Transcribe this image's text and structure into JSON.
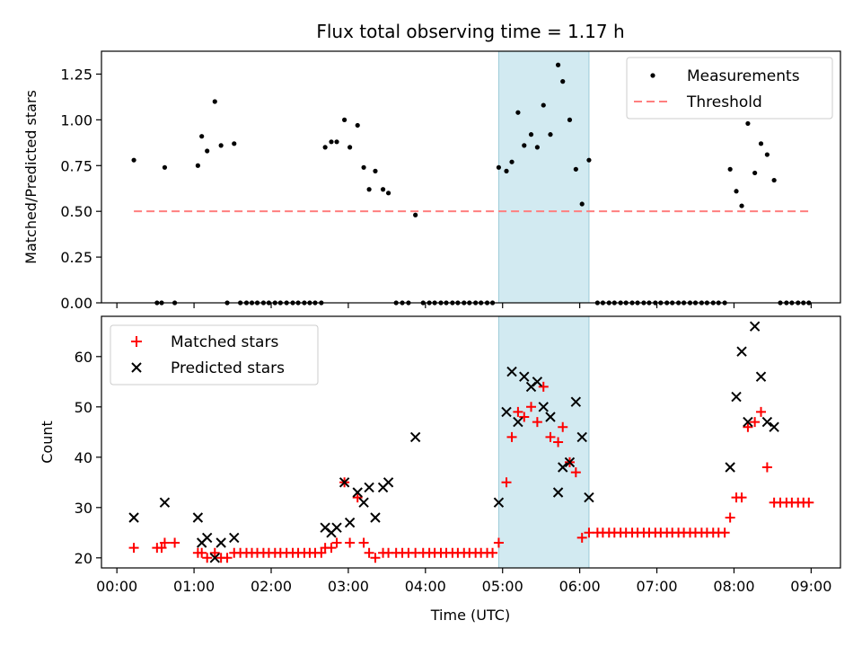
{
  "title": "Flux total observing time = 1.17 h",
  "colors": {
    "measurement": "#000000",
    "threshold": "#ff7f7f",
    "matched": "#ff0000",
    "predicted": "#000000",
    "highlight": "#add8e6"
  },
  "chart_data": [
    {
      "type": "scatter",
      "ylabel": "Matched/Predicted stars",
      "ylim": [
        0,
        1.375
      ],
      "yticks": [
        0,
        0.25,
        0.5,
        0.75,
        1.0,
        1.25
      ],
      "ytick_labels": [
        "0.00",
        "0.25",
        "0.50",
        "0.75",
        "1.00",
        "1.25"
      ],
      "xlim": [
        -0.2,
        9.38
      ],
      "grid": false,
      "legend": {
        "position": "top-right",
        "entries": [
          "Measurements",
          "Threshold"
        ]
      },
      "highlight_span": [
        4.95,
        6.12
      ],
      "threshold": {
        "name": "Threshold",
        "y": 0.5,
        "x_range": [
          0.22,
          8.98
        ]
      },
      "series": [
        {
          "name": "Measurements",
          "points": [
            [
              0.22,
              0.78
            ],
            [
              0.52,
              0
            ],
            [
              0.58,
              0
            ],
            [
              0.62,
              0.74
            ],
            [
              0.75,
              0
            ],
            [
              1.05,
              0.75
            ],
            [
              1.1,
              0.91
            ],
            [
              1.17,
              0.83
            ],
            [
              1.27,
              1.1
            ],
            [
              1.35,
              0.86
            ],
            [
              1.43,
              0
            ],
            [
              1.52,
              0.87
            ],
            [
              1.6,
              0
            ],
            [
              1.68,
              0
            ],
            [
              1.75,
              0
            ],
            [
              1.82,
              0
            ],
            [
              1.9,
              0
            ],
            [
              1.97,
              0
            ],
            [
              2.05,
              0
            ],
            [
              2.12,
              0
            ],
            [
              2.2,
              0
            ],
            [
              2.28,
              0
            ],
            [
              2.35,
              0
            ],
            [
              2.43,
              0
            ],
            [
              2.5,
              0
            ],
            [
              2.57,
              0
            ],
            [
              2.65,
              0
            ],
            [
              2.7,
              0.85
            ],
            [
              2.78,
              0.88
            ],
            [
              2.85,
              0.88
            ],
            [
              2.95,
              1.0
            ],
            [
              3.02,
              0.85
            ],
            [
              3.12,
              0.97
            ],
            [
              3.2,
              0.74
            ],
            [
              3.27,
              0.62
            ],
            [
              3.35,
              0.72
            ],
            [
              3.45,
              0.62
            ],
            [
              3.52,
              0.6
            ],
            [
              3.62,
              0
            ],
            [
              3.7,
              0
            ],
            [
              3.78,
              0
            ],
            [
              3.87,
              0.48
            ],
            [
              3.97,
              0
            ],
            [
              4.05,
              0
            ],
            [
              4.12,
              0
            ],
            [
              4.2,
              0
            ],
            [
              4.27,
              0
            ],
            [
              4.35,
              0
            ],
            [
              4.42,
              0
            ],
            [
              4.5,
              0
            ],
            [
              4.57,
              0
            ],
            [
              4.65,
              0
            ],
            [
              4.72,
              0
            ],
            [
              4.8,
              0
            ],
            [
              4.87,
              0
            ],
            [
              4.95,
              0.74
            ],
            [
              5.05,
              0.72
            ],
            [
              5.12,
              0.77
            ],
            [
              5.2,
              1.04
            ],
            [
              5.28,
              0.86
            ],
            [
              5.37,
              0.92
            ],
            [
              5.45,
              0.85
            ],
            [
              5.53,
              1.08
            ],
            [
              5.62,
              0.92
            ],
            [
              5.72,
              1.3
            ],
            [
              5.78,
              1.21
            ],
            [
              5.87,
              1.0
            ],
            [
              5.95,
              0.73
            ],
            [
              6.03,
              0.54
            ],
            [
              6.12,
              0.78
            ],
            [
              6.23,
              0
            ],
            [
              6.3,
              0
            ],
            [
              6.38,
              0
            ],
            [
              6.45,
              0
            ],
            [
              6.53,
              0
            ],
            [
              6.6,
              0
            ],
            [
              6.68,
              0
            ],
            [
              6.75,
              0
            ],
            [
              6.83,
              0
            ],
            [
              6.9,
              0
            ],
            [
              6.98,
              0
            ],
            [
              7.05,
              0
            ],
            [
              7.13,
              0
            ],
            [
              7.2,
              0
            ],
            [
              7.28,
              0
            ],
            [
              7.35,
              0
            ],
            [
              7.43,
              0
            ],
            [
              7.5,
              0
            ],
            [
              7.58,
              0
            ],
            [
              7.65,
              0
            ],
            [
              7.73,
              0
            ],
            [
              7.8,
              0
            ],
            [
              7.88,
              0
            ],
            [
              7.95,
              0.73
            ],
            [
              8.03,
              0.61
            ],
            [
              8.1,
              0.53
            ],
            [
              8.18,
              0.98
            ],
            [
              8.27,
              0.71
            ],
            [
              8.35,
              0.87
            ],
            [
              8.43,
              0.81
            ],
            [
              8.52,
              0.67
            ],
            [
              8.6,
              0
            ],
            [
              8.68,
              0
            ],
            [
              8.75,
              0
            ],
            [
              8.83,
              0
            ],
            [
              8.9,
              0
            ],
            [
              8.97,
              0
            ]
          ]
        }
      ]
    },
    {
      "type": "scatter",
      "xlabel": "Time (UTC)",
      "ylabel": "Count",
      "ylim": [
        18,
        68
      ],
      "yticks": [
        20,
        30,
        40,
        50,
        60
      ],
      "ytick_labels": [
        "20",
        "30",
        "40",
        "50",
        "60"
      ],
      "xlim": [
        -0.2,
        9.38
      ],
      "xticks": [
        0,
        1,
        2,
        3,
        4,
        5,
        6,
        7,
        8,
        9
      ],
      "xtick_labels": [
        "00:00",
        "01:00",
        "02:00",
        "03:00",
        "04:00",
        "05:00",
        "06:00",
        "07:00",
        "08:00",
        "09:00"
      ],
      "grid": false,
      "legend": {
        "position": "top-left",
        "entries": [
          "Matched stars",
          "Predicted stars"
        ]
      },
      "highlight_span": [
        4.95,
        6.12
      ],
      "series": [
        {
          "name": "Matched stars",
          "marker": "plus",
          "points": [
            [
              0.22,
              22
            ],
            [
              0.52,
              22
            ],
            [
              0.58,
              22
            ],
            [
              0.62,
              23
            ],
            [
              0.75,
              23
            ],
            [
              1.05,
              21
            ],
            [
              1.1,
              21
            ],
            [
              1.17,
              20
            ],
            [
              1.27,
              21
            ],
            [
              1.35,
              20
            ],
            [
              1.43,
              20
            ],
            [
              1.52,
              21
            ],
            [
              1.6,
              21
            ],
            [
              1.68,
              21
            ],
            [
              1.75,
              21
            ],
            [
              1.82,
              21
            ],
            [
              1.9,
              21
            ],
            [
              1.97,
              21
            ],
            [
              2.05,
              21
            ],
            [
              2.12,
              21
            ],
            [
              2.2,
              21
            ],
            [
              2.28,
              21
            ],
            [
              2.35,
              21
            ],
            [
              2.43,
              21
            ],
            [
              2.5,
              21
            ],
            [
              2.57,
              21
            ],
            [
              2.65,
              21
            ],
            [
              2.7,
              22
            ],
            [
              2.78,
              22
            ],
            [
              2.85,
              23
            ],
            [
              2.95,
              35
            ],
            [
              3.02,
              23
            ],
            [
              3.12,
              32
            ],
            [
              3.2,
              23
            ],
            [
              3.27,
              21
            ],
            [
              3.35,
              20
            ],
            [
              3.45,
              21
            ],
            [
              3.52,
              21
            ],
            [
              3.62,
              21
            ],
            [
              3.7,
              21
            ],
            [
              3.78,
              21
            ],
            [
              3.87,
              21
            ],
            [
              3.97,
              21
            ],
            [
              4.05,
              21
            ],
            [
              4.12,
              21
            ],
            [
              4.2,
              21
            ],
            [
              4.27,
              21
            ],
            [
              4.35,
              21
            ],
            [
              4.42,
              21
            ],
            [
              4.5,
              21
            ],
            [
              4.57,
              21
            ],
            [
              4.65,
              21
            ],
            [
              4.72,
              21
            ],
            [
              4.8,
              21
            ],
            [
              4.87,
              21
            ],
            [
              4.95,
              23
            ],
            [
              5.05,
              35
            ],
            [
              5.12,
              44
            ],
            [
              5.2,
              49
            ],
            [
              5.28,
              48
            ],
            [
              5.37,
              50
            ],
            [
              5.45,
              47
            ],
            [
              5.53,
              54
            ],
            [
              5.62,
              44
            ],
            [
              5.72,
              43
            ],
            [
              5.78,
              46
            ],
            [
              5.87,
              39
            ],
            [
              5.95,
              37
            ],
            [
              6.03,
              24
            ],
            [
              6.12,
              25
            ],
            [
              6.23,
              25
            ],
            [
              6.3,
              25
            ],
            [
              6.38,
              25
            ],
            [
              6.45,
              25
            ],
            [
              6.53,
              25
            ],
            [
              6.6,
              25
            ],
            [
              6.68,
              25
            ],
            [
              6.75,
              25
            ],
            [
              6.83,
              25
            ],
            [
              6.9,
              25
            ],
            [
              6.98,
              25
            ],
            [
              7.05,
              25
            ],
            [
              7.13,
              25
            ],
            [
              7.2,
              25
            ],
            [
              7.28,
              25
            ],
            [
              7.35,
              25
            ],
            [
              7.43,
              25
            ],
            [
              7.5,
              25
            ],
            [
              7.58,
              25
            ],
            [
              7.65,
              25
            ],
            [
              7.73,
              25
            ],
            [
              7.8,
              25
            ],
            [
              7.88,
              25
            ],
            [
              7.95,
              28
            ],
            [
              8.03,
              32
            ],
            [
              8.1,
              32
            ],
            [
              8.18,
              46
            ],
            [
              8.27,
              47
            ],
            [
              8.35,
              49
            ],
            [
              8.43,
              38
            ],
            [
              8.52,
              31
            ],
            [
              8.6,
              31
            ],
            [
              8.68,
              31
            ],
            [
              8.75,
              31
            ],
            [
              8.83,
              31
            ],
            [
              8.9,
              31
            ],
            [
              8.97,
              31
            ]
          ]
        },
        {
          "name": "Predicted stars",
          "marker": "x",
          "points": [
            [
              0.22,
              28
            ],
            [
              0.62,
              31
            ],
            [
              1.05,
              28
            ],
            [
              1.1,
              23
            ],
            [
              1.17,
              24
            ],
            [
              1.27,
              20
            ],
            [
              1.35,
              23
            ],
            [
              1.52,
              24
            ],
            [
              2.7,
              26
            ],
            [
              2.78,
              25
            ],
            [
              2.85,
              26
            ],
            [
              2.95,
              35
            ],
            [
              3.02,
              27
            ],
            [
              3.12,
              33
            ],
            [
              3.2,
              31
            ],
            [
              3.27,
              34
            ],
            [
              3.35,
              28
            ],
            [
              3.45,
              34
            ],
            [
              3.52,
              35
            ],
            [
              3.87,
              44
            ],
            [
              4.95,
              31
            ],
            [
              5.05,
              49
            ],
            [
              5.12,
              57
            ],
            [
              5.2,
              47
            ],
            [
              5.28,
              56
            ],
            [
              5.37,
              54
            ],
            [
              5.45,
              55
            ],
            [
              5.53,
              50
            ],
            [
              5.62,
              48
            ],
            [
              5.72,
              33
            ],
            [
              5.78,
              38
            ],
            [
              5.87,
              39
            ],
            [
              5.95,
              51
            ],
            [
              6.03,
              44
            ],
            [
              6.12,
              32
            ],
            [
              7.95,
              38
            ],
            [
              8.03,
              52
            ],
            [
              8.1,
              61
            ],
            [
              8.18,
              47
            ],
            [
              8.27,
              66
            ],
            [
              8.35,
              56
            ],
            [
              8.43,
              47
            ],
            [
              8.52,
              46
            ]
          ]
        }
      ]
    }
  ]
}
